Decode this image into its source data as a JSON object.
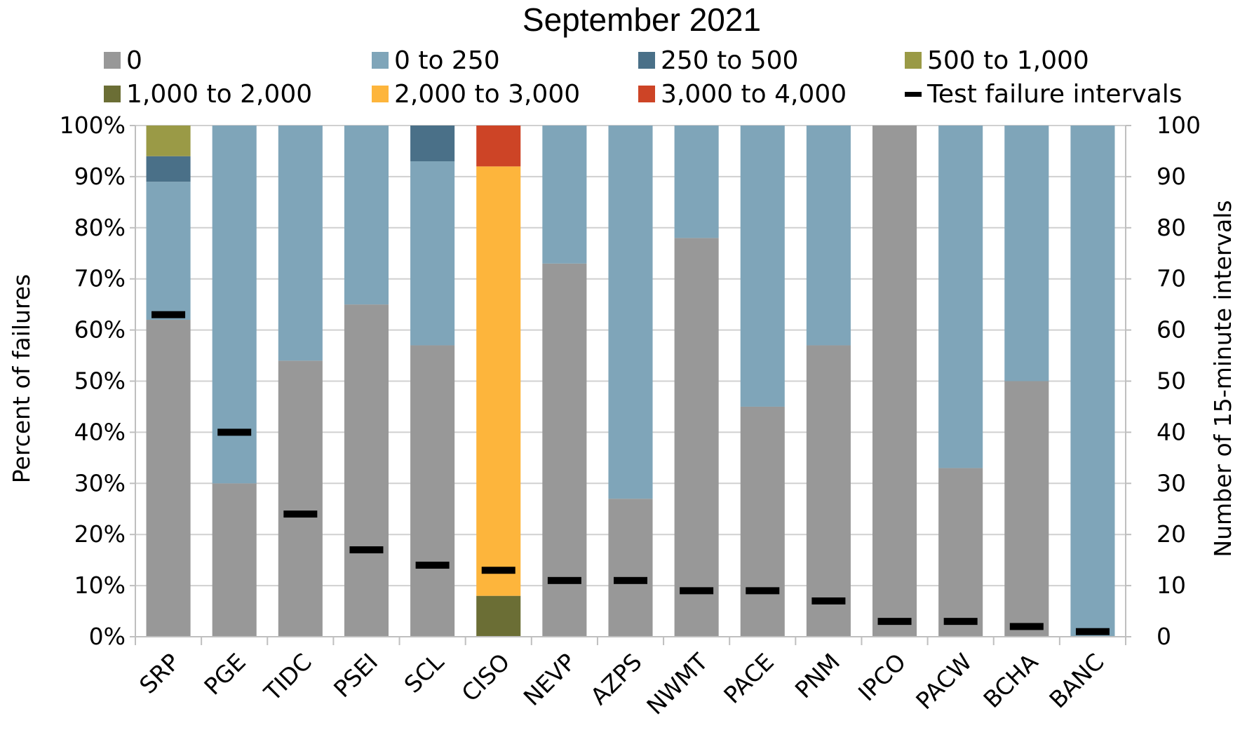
{
  "chart_data": {
    "type": "bar",
    "stacked": true,
    "title": "September 2021",
    "ylabel": "Percent of failures",
    "y2label": "Number of 15-minute intervals",
    "ylim": [
      0,
      100
    ],
    "y2lim": [
      0,
      100
    ],
    "yticks": [
      "0%",
      "10%",
      "20%",
      "30%",
      "40%",
      "50%",
      "60%",
      "70%",
      "80%",
      "90%",
      "100%"
    ],
    "y2ticks": [
      "0",
      "10",
      "20",
      "30",
      "40",
      "50",
      "60",
      "70",
      "80",
      "90",
      "100"
    ],
    "grid": true,
    "legend_position": "top",
    "categories": [
      "SRP",
      "PGE",
      "TIDC",
      "PSEI",
      "SCL",
      "CISO",
      "NEVP",
      "AZPS",
      "NWMT",
      "PACE",
      "PNM",
      "IPCO",
      "PACW",
      "BCHA",
      "BANC"
    ],
    "series": [
      {
        "name": "0",
        "color": "#989898",
        "values": [
          62,
          30,
          54,
          65,
          57,
          0,
          73,
          27,
          78,
          45,
          57,
          100,
          33,
          50,
          0
        ]
      },
      {
        "name": "0 to 250",
        "color": "#7fa5b9",
        "values": [
          27,
          70,
          46,
          35,
          36,
          0,
          27,
          73,
          22,
          55,
          43,
          0,
          67,
          50,
          100
        ]
      },
      {
        "name": "250 to 500",
        "color": "#4a7088",
        "values": [
          5,
          0,
          0,
          0,
          7,
          0,
          0,
          0,
          0,
          0,
          0,
          0,
          0,
          0,
          0
        ]
      },
      {
        "name": "500 to 1,000",
        "color": "#9a9a46",
        "values": [
          6,
          0,
          0,
          0,
          0,
          0,
          0,
          0,
          0,
          0,
          0,
          0,
          0,
          0,
          0
        ]
      },
      {
        "name": "1,000 to 2,000",
        "color": "#6b6e35",
        "values": [
          0,
          0,
          0,
          0,
          0,
          8,
          0,
          0,
          0,
          0,
          0,
          0,
          0,
          0,
          0
        ]
      },
      {
        "name": "2,000 to 3,000",
        "color": "#fdb53c",
        "values": [
          0,
          0,
          0,
          0,
          0,
          84,
          0,
          0,
          0,
          0,
          0,
          0,
          0,
          0,
          0
        ]
      },
      {
        "name": "3,000 to 4,000",
        "color": "#cd4426",
        "values": [
          0,
          0,
          0,
          0,
          0,
          8,
          0,
          0,
          0,
          0,
          0,
          0,
          0,
          0,
          0
        ]
      }
    ],
    "markers": {
      "name": "Test failure intervals",
      "axis": "right",
      "color": "#000000",
      "values": [
        63,
        40,
        24,
        17,
        14,
        13,
        11,
        11,
        9,
        9,
        7,
        3,
        3,
        2,
        1
      ]
    }
  }
}
